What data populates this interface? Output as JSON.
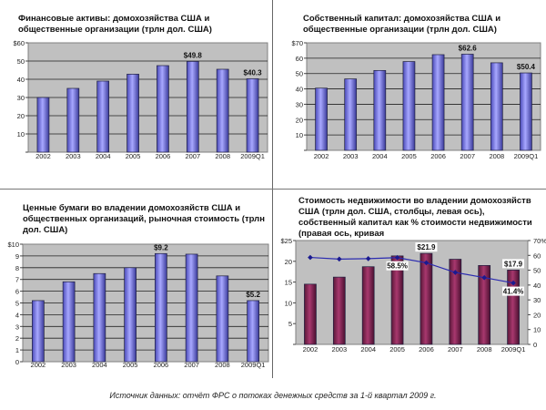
{
  "chart_data": [
    {
      "type": "bar",
      "title": "Финансовые активы:   домохозяйства США и общественные организации (трлн дол. США)",
      "categories": [
        "2002",
        "2003",
        "2004",
        "2005",
        "2006",
        "2007",
        "2008",
        "2009Q1"
      ],
      "values": [
        30,
        35,
        39,
        42.8,
        47.5,
        49.8,
        45.5,
        40.3
      ],
      "ylim": [
        0,
        60
      ],
      "yticks": [
        "",
        "10",
        "20",
        "30",
        "40",
        "50",
        "$60"
      ],
      "data_labels": {
        "5": "$49.8",
        "7": "$40.3"
      },
      "grid": true
    },
    {
      "type": "bar",
      "title": "Собственный капитал:   домохозяйства США и общественные организации (трлн дол. США)",
      "categories": [
        "2002",
        "2003",
        "2004",
        "2005",
        "2006",
        "2007",
        "2008",
        "2009Q1"
      ],
      "values": [
        40.5,
        46.5,
        52,
        57.8,
        62.3,
        62.6,
        57,
        50.4
      ],
      "ylim": [
        0,
        70
      ],
      "yticks": [
        "",
        "10",
        "20",
        "30",
        "40",
        "50",
        "60",
        "$70"
      ],
      "data_labels": {
        "5": "$62.6",
        "7": "$50.4"
      },
      "grid": true
    },
    {
      "type": "bar",
      "title": "Ценные бумаги во владении домохозяйств США и общественных организаций, рыночная стоимость (трлн дол. США)",
      "categories": [
        "2002",
        "2003",
        "2004",
        "2005",
        "2006",
        "2007",
        "2008",
        "2009Q1"
      ],
      "values": [
        5.2,
        6.8,
        7.5,
        8.0,
        9.2,
        9.15,
        7.3,
        5.2
      ],
      "ylim": [
        0,
        10
      ],
      "yticks": [
        "0",
        "1",
        "2",
        "3",
        "4",
        "5",
        "6",
        "7",
        "8",
        "9",
        "$10"
      ],
      "data_labels": {
        "4": "$9.2",
        "7": "$5.2"
      },
      "grid": true
    },
    {
      "type": "bar",
      "title": "Стоимость недвижимости во владении домохозяйств США (трлн дол. США, столбцы, левая ось), собственный капитал как % стоимости недвижимости (правая ось, кривая",
      "categories": [
        "2002",
        "2003",
        "2004",
        "2005",
        "2006",
        "2007",
        "2008",
        "2009Q1"
      ],
      "values": [
        14.5,
        16.2,
        18.7,
        21.3,
        21.9,
        20.5,
        19.0,
        17.9
      ],
      "ylim": [
        0,
        25
      ],
      "yticks": [
        "",
        "5",
        "10",
        "15",
        "20",
        "$25"
      ],
      "data_labels": {
        "4": "$21.9",
        "7": "$17.9"
      },
      "line_series": {
        "name": "собственный капитал как % стоимости недвижимости",
        "values": [
          58.6,
          57.5,
          57.8,
          58.5,
          55.0,
          48.5,
          45.0,
          41.4
        ],
        "y2lim": [
          0,
          70
        ],
        "y2ticks": [
          "0",
          "10",
          "20",
          "30",
          "40",
          "50",
          "60",
          "70%"
        ],
        "data_labels": {
          "3": "58.5%",
          "7": "41.4%"
        }
      },
      "grid": false
    }
  ],
  "footer": "Источник данных: отчёт ФРС о потоках денежных средств за 1-й квартал 2009 г.",
  "colors": {
    "bar_blue": "#8c8cf0",
    "bar_blue_dark": "#30307a",
    "bar_maroon": "#8a2a5a",
    "line": "#2b2bb0",
    "plot_bg": "#c0c0c0"
  }
}
